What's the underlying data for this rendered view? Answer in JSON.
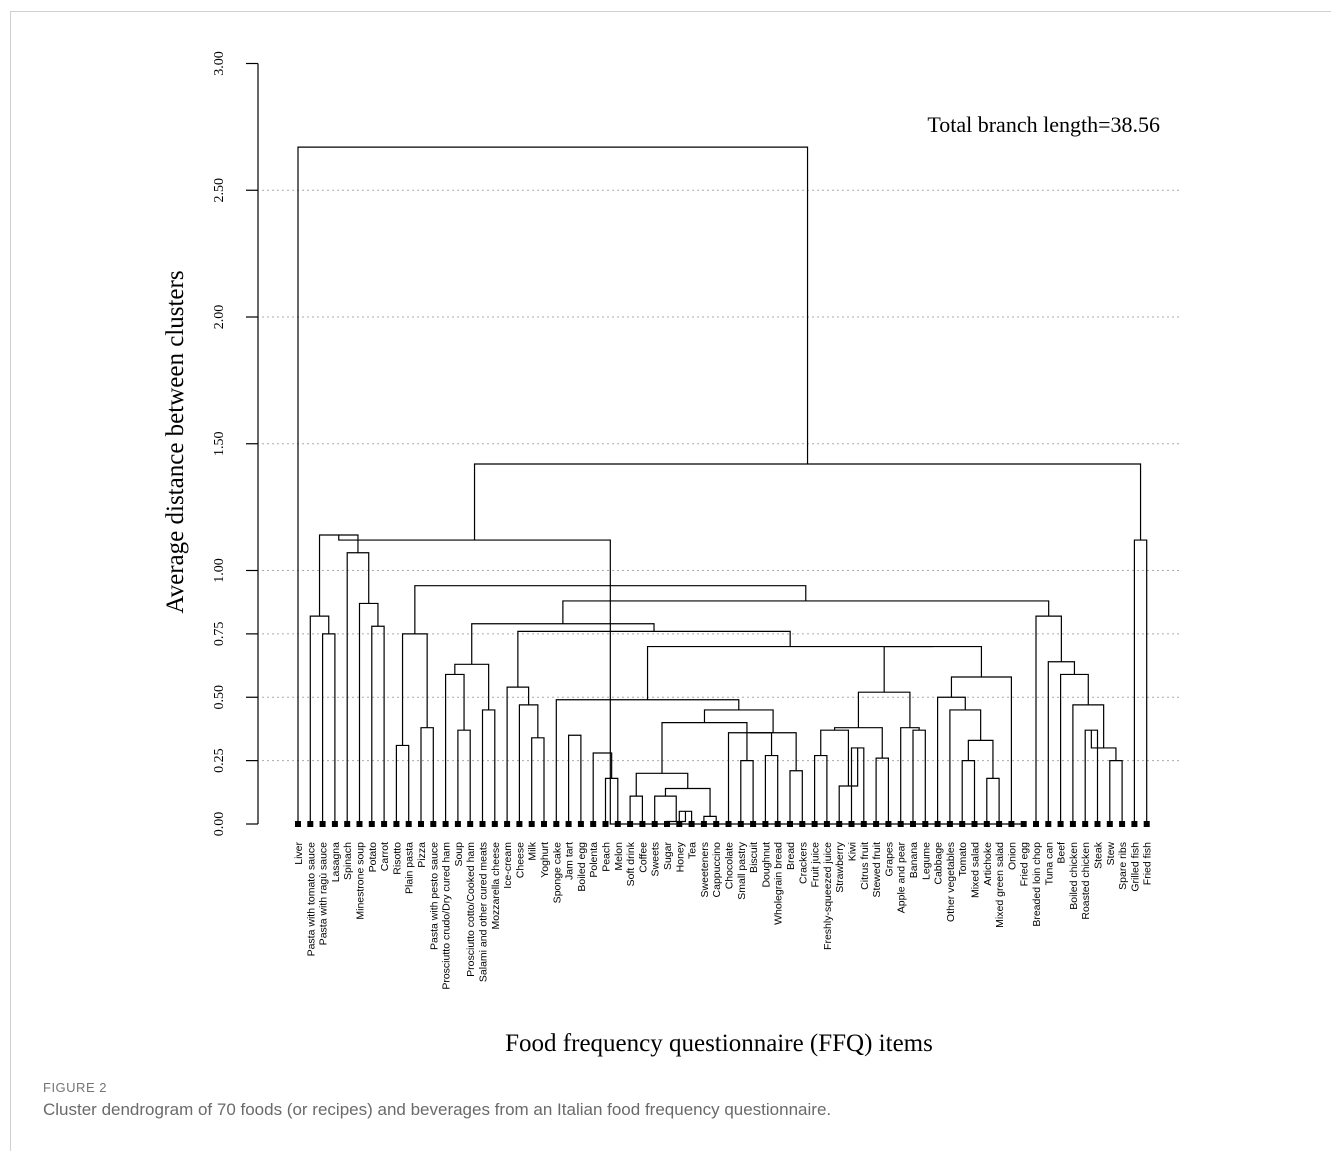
{
  "figure": {
    "label": "FIGURE 2",
    "caption": "Cluster dendrogram of 70 foods (or recipes) and beverages from an Italian food frequency questionnaire."
  },
  "chart_data": {
    "type": "dendrogram",
    "xlabel": "Food frequency questionnaire (FFQ) items",
    "ylabel": "Average distance between clusters",
    "annotation": "Total branch length=38.56",
    "ylim": [
      0,
      3.0
    ],
    "yticks": [
      "0.00",
      "0.25",
      "0.50",
      "0.75",
      "1.00",
      "1.50",
      "2.00",
      "2.50",
      "3.00"
    ],
    "ytick_values": [
      0,
      0.25,
      0.5,
      0.75,
      1.0,
      1.5,
      2.0,
      2.5,
      3.0
    ],
    "grid": "dotted horizontal lines at tick values",
    "leaves": [
      "Liver",
      "Pasta with tomato sauce",
      "Pasta with ragù sauce",
      "Lasagna",
      "Spinach",
      "Minestrone soup",
      "Potato",
      "Carrot",
      "Risotto",
      "Plain pasta",
      "Pizza",
      "Pasta with pesto sauce",
      "Prosciutto crudo/Dry cured ham",
      "Soup",
      "Prosciutto cotto/Cooked ham",
      "Salami and other cured meats",
      "Mozzarella cheese",
      "Ice-cream",
      "Cheese",
      "Milk",
      "Yoghurt",
      "Sponge cake",
      "Jam tart",
      "Boiled egg",
      "Polenta",
      "Peach",
      "Melon",
      "Soft drink",
      "Coffee",
      "Sweets",
      "Sugar",
      "Honey",
      "Tea",
      "Sweeteners",
      "Cappuccino",
      "Chocolate",
      "Small pastry",
      "Biscuit",
      "Doughnut",
      "Wholegrain bread",
      "Bread",
      "Crackers",
      "Fruit juice",
      "Freshly-squeezed juice",
      "Strawberry",
      "Kiwi",
      "Citrus fruit",
      "Stewed fruit",
      "Grapes",
      "Apple and pear",
      "Banana",
      "Legume",
      "Cabbage",
      "Other vegetables",
      "Tomato",
      "Mixed salad",
      "Artichoke",
      "Mixed green salad",
      "Onion",
      "Fried egg",
      "Breaded loin chop",
      "Tuna can",
      "Beef",
      "Boiled chicken",
      "Roasted chicken",
      "Steak",
      "Stew",
      "Spare ribs",
      "Grilled fish",
      "Fried fish"
    ],
    "merges": [
      [
        2,
        3,
        0.75
      ],
      [
        1,
        "m0",
        0.82
      ],
      [
        6,
        7,
        0.78
      ],
      [
        5,
        "m2",
        0.87
      ],
      [
        4,
        "m3",
        1.07
      ],
      [
        "m1",
        "m4",
        1.14
      ],
      [
        8,
        9,
        0.31
      ],
      [
        10,
        11,
        0.38
      ],
      [
        "m6",
        "m7",
        0.75
      ],
      [
        13,
        14,
        0.37
      ],
      [
        12,
        "m9",
        0.59
      ],
      [
        15,
        16,
        0.45
      ],
      [
        19,
        20,
        0.34
      ],
      [
        18,
        "m12",
        0.47
      ],
      [
        17,
        "m13",
        0.54
      ],
      [
        22,
        23,
        0.35
      ],
      [
        25,
        26,
        0.18
      ],
      [
        31,
        32,
        0.05
      ],
      [
        30,
        "m17",
        0.01
      ],
      [
        29,
        "m18",
        0.11
      ],
      [
        33,
        34,
        0.03
      ],
      [
        "m19",
        "m20",
        0.14
      ],
      [
        27,
        28,
        0.11
      ],
      [
        "m22",
        "m21",
        0.2
      ],
      [
        24,
        "m16",
        0.28
      ],
      [
        36,
        37,
        0.25
      ],
      [
        38,
        39,
        0.27
      ],
      [
        35,
        "m26",
        0.36
      ],
      [
        40,
        41,
        0.21
      ],
      [
        "m27",
        "m28",
        0.36
      ],
      [
        42,
        43,
        0.27
      ],
      [
        45,
        46,
        0.3
      ],
      [
        44,
        "m31",
        0.15
      ],
      [
        50,
        51,
        0.37
      ],
      [
        49,
        "m33",
        0.38
      ],
      [
        "m30",
        "m32",
        0.37
      ],
      [
        47,
        48,
        0.26
      ],
      [
        "m35",
        "m36",
        0.38
      ],
      [
        "m37",
        "m34",
        0.52
      ],
      [
        54,
        55,
        0.25
      ],
      [
        56,
        57,
        0.18
      ],
      [
        "m39",
        "m40",
        0.33
      ],
      [
        53,
        "m41",
        0.45
      ],
      [
        52,
        "m42",
        0.5
      ],
      [
        58,
        "m43",
        0.58
      ],
      [
        "m38",
        "m44",
        0.7
      ],
      [
        "m23",
        "m25",
        0.4
      ],
      [
        "m46",
        "m29",
        0.45
      ],
      [
        21,
        "m47",
        0.49
      ],
      [
        10,
        10,
        0
      ]
    ]
  }
}
